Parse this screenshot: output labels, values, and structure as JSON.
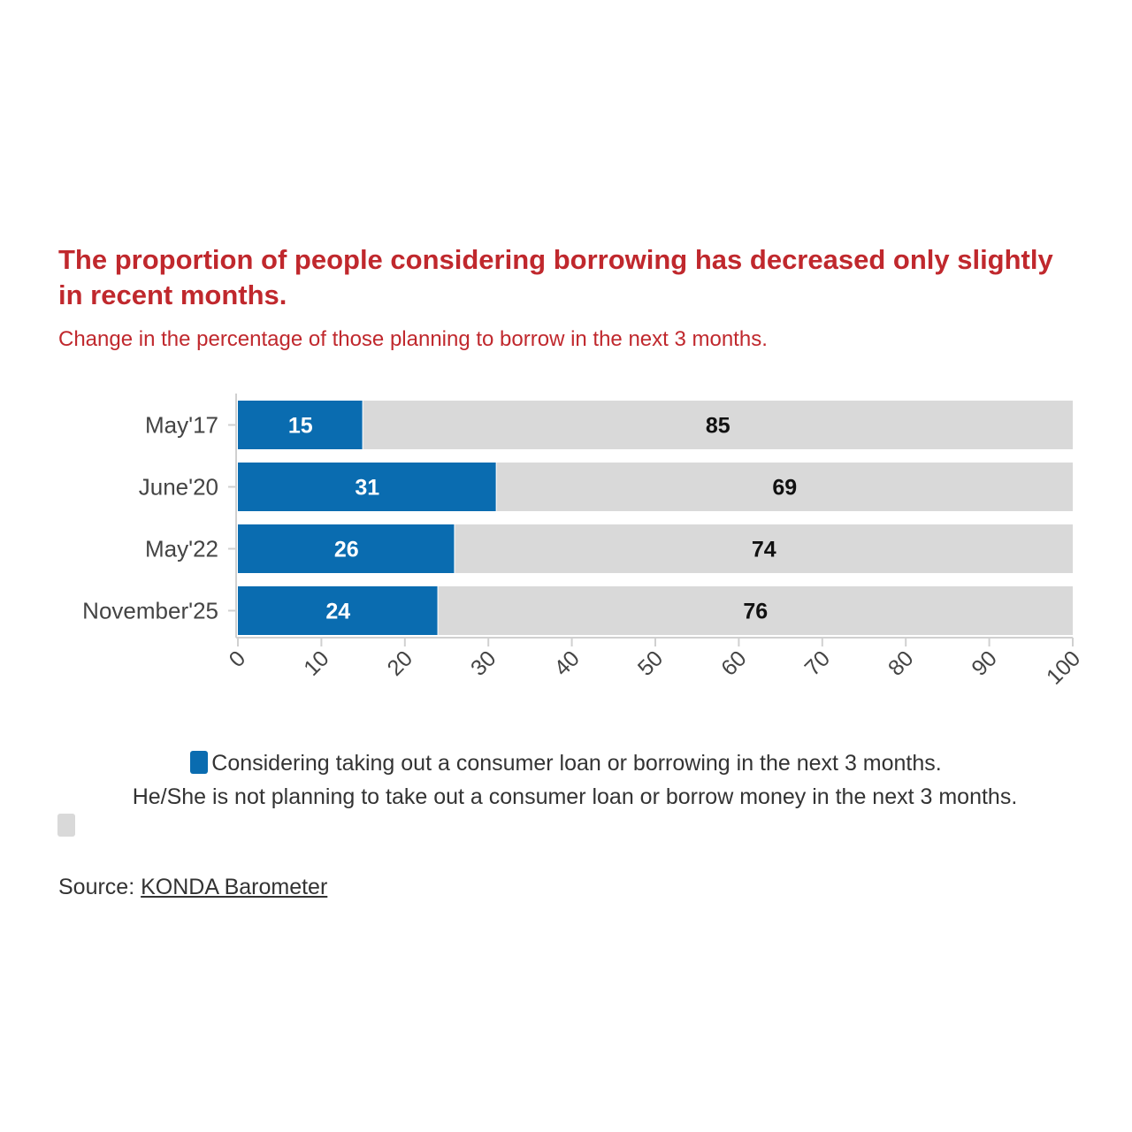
{
  "title": "The proportion of people considering borrowing has decreased only slightly in recent months.",
  "subtitle": "Change in the percentage of those planning to borrow in the next 3 months.",
  "colors": {
    "considering": "#0a6cb0",
    "not_planning": "#d9d9d9",
    "title": "#c0282d"
  },
  "chart_data": {
    "type": "bar",
    "orientation": "horizontal",
    "stacked": true,
    "categories": [
      "May'17",
      "June'20",
      "May'22",
      "November'25"
    ],
    "series": [
      {
        "name": "Considering taking out a consumer loan or borrowing in the next 3 months.",
        "values": [
          15,
          31,
          26,
          24
        ],
        "color": "#0a6cb0"
      },
      {
        "name": "He/She is not planning to take out a consumer loan or borrow money in the next 3 months.",
        "values": [
          85,
          69,
          74,
          76
        ],
        "color": "#d9d9d9"
      }
    ],
    "xlim": [
      0,
      100
    ],
    "xticks": [
      0,
      10,
      20,
      30,
      40,
      50,
      60,
      70,
      80,
      90,
      100
    ],
    "xlabel": "",
    "ylabel": "",
    "grid": false,
    "legend_position": "bottom"
  },
  "legend": {
    "item1": "Considering taking out a consumer loan or borrowing in the next 3 months.",
    "item2": "He/She is not planning to take out a consumer loan or borrow money in the next 3 months."
  },
  "source": {
    "prefix": "Source: ",
    "link": "KONDA Barometer"
  }
}
